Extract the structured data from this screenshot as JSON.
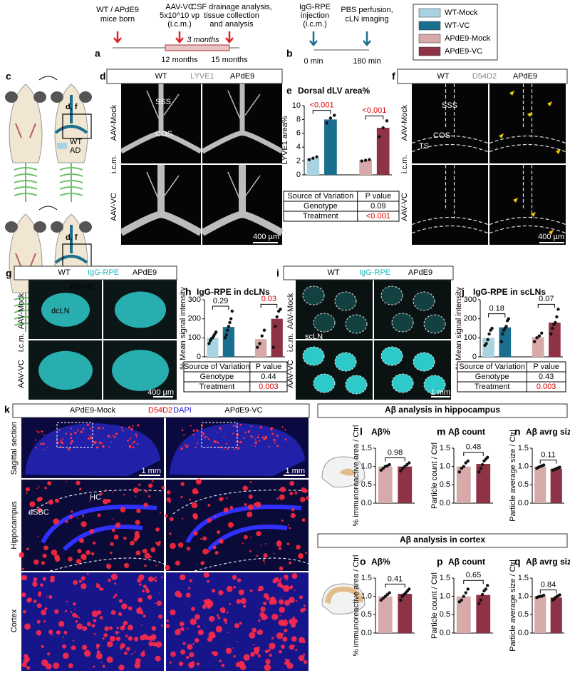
{
  "panel_a": {
    "label": "a",
    "events": [
      [
        "WT / APdE9",
        "mice born"
      ],
      [
        "AAV-VC",
        "5x10^10 vp",
        "(i.c.m.)"
      ],
      [
        "CSF drainage analysis,",
        "tissue collection",
        "and analysis"
      ]
    ],
    "times": [
      "12 months",
      "15 months"
    ],
    "duration": "3 months"
  },
  "panel_b": {
    "label": "b",
    "events": [
      [
        "IgG-RPE",
        "injection",
        "(i.c.m.)"
      ],
      [
        "PBS perfusion,",
        "cLN imaging"
      ]
    ],
    "times": [
      "0 min",
      "180 min"
    ]
  },
  "legend": [
    {
      "name": "WT-Mock",
      "color": "#a8d4e2"
    },
    {
      "name": "WT-VC",
      "color": "#1b6f8e"
    },
    {
      "name": "APdE9-Mock",
      "color": "#d8a9a9"
    },
    {
      "name": "APdE9-VC",
      "color": "#8e3345"
    }
  ],
  "panel_c": {
    "label": "c",
    "boxes": [
      "d, f",
      "d, f"
    ],
    "groups": [
      [
        "WT",
        "AD"
      ],
      [
        "VC",
        "AD-VC"
      ]
    ]
  },
  "panel_d": {
    "label": "d",
    "header": [
      "WT",
      "LYVE1",
      "APdE9"
    ],
    "rows": [
      "AAV-Mock",
      "i.c.m.",
      "AAV-VC"
    ],
    "annotations": [
      "SSS",
      "COS"
    ],
    "scale": "400 µm"
  },
  "panel_f": {
    "label": "f",
    "header": [
      "WT",
      "D54D2",
      "APdE9"
    ],
    "rows": [
      "AAV-Mock",
      "i.c.m.",
      "AAV-VC"
    ],
    "annotations": [
      "SSS",
      "COS",
      "TS"
    ],
    "scale": "400 µm"
  },
  "panel_g": {
    "label": "g",
    "header": [
      "WT",
      "IgG-RPE",
      "APdE9"
    ],
    "rows": [
      "AAV-Mock",
      "i.c.m.",
      "AAV-VC"
    ],
    "annotations": [
      "dcLN"
    ],
    "scale": "400 µm"
  },
  "panel_i": {
    "label": "i",
    "header": [
      "WT",
      "IgG-RPE",
      "APdE9"
    ],
    "rows": [
      "AAV-Mock",
      "i.c.m.",
      "AAV-VC"
    ],
    "annotations": [
      "scLN"
    ],
    "scale": "1 mm"
  },
  "panel_k": {
    "label": "k",
    "header": [
      "APdE9-Mock",
      "D54D2",
      "DAPI",
      "APdE9-VC"
    ],
    "rows": [
      "Sagittal section",
      "Hippocampus",
      "Cortex"
    ],
    "annotations": [
      "HC",
      "dSBC"
    ],
    "scales": [
      "1 mm",
      "1 mm"
    ]
  },
  "sections": [
    "Aβ analysis in hippocampus",
    "Aβ analysis in cortex"
  ],
  "chart_data": [
    {
      "type": "bar",
      "label": "e",
      "title": "Dorsal dLV area%",
      "y_label": "LYVE1 area%",
      "ylim": [
        0,
        10
      ],
      "yticks": [
        0,
        2,
        4,
        6,
        8,
        10
      ],
      "series": [
        {
          "name": "WT-Mock",
          "color": "#a8d4e2",
          "values": [
            2.4
          ],
          "points": [
            2.2,
            2.4,
            2.6
          ]
        },
        {
          "name": "WT-VC",
          "color": "#1b6f8e",
          "values": [
            8.0
          ],
          "points": [
            7.5,
            8.2,
            8.6
          ]
        },
        {
          "name": "APdE9-Mock",
          "color": "#d8a9a9",
          "values": [
            2.1
          ],
          "points": [
            2.0,
            2.1,
            2.2
          ]
        },
        {
          "name": "APdE9-VC",
          "color": "#8e3345",
          "values": [
            6.8
          ],
          "points": [
            5.5,
            6.8,
            7.8
          ]
        }
      ],
      "brackets": [
        {
          "label": "<0.001",
          "color": "#e00000"
        },
        {
          "label": "<0.001",
          "color": "#e00000"
        }
      ],
      "stats": {
        "header": [
          "Source of Variation",
          "P value"
        ],
        "rows": [
          [
            "Genotype",
            0.09
          ],
          [
            "Treatment",
            "<0.001"
          ]
        ],
        "row_colors": [
          "#000000",
          "#e00000"
        ]
      }
    },
    {
      "type": "bar",
      "label": "h",
      "title": "IgG-RPE in dcLNs",
      "y_label": "% Mean signal intensity",
      "ylim": [
        0,
        300
      ],
      "yticks": [
        0,
        100,
        200,
        300
      ],
      "series": [
        {
          "name": "WT-Mock",
          "color": "#a8d4e2",
          "values": [
            100
          ],
          "points": [
            70,
            85,
            95,
            100,
            110,
            120,
            130
          ]
        },
        {
          "name": "WT-VC",
          "color": "#1b6f8e",
          "values": [
            157
          ],
          "points": [
            100,
            115,
            140,
            160,
            180,
            200,
            240
          ]
        },
        {
          "name": "APdE9-Mock",
          "color": "#d8a9a9",
          "values": [
            93
          ],
          "points": [
            50,
            70,
            110,
            140
          ]
        },
        {
          "name": "APdE9-VC",
          "color": "#8e3345",
          "values": [
            200
          ],
          "points": [
            50,
            160,
            210,
            240,
            250
          ]
        }
      ],
      "brackets": [
        {
          "label": 0.29,
          "color": "#000000"
        },
        {
          "label": 0.03,
          "color": "#e00000"
        }
      ],
      "stats": {
        "header": [
          "Source of Variation",
          "P value"
        ],
        "rows": [
          [
            "Genotype",
            0.44
          ],
          [
            "Treatment",
            0.003
          ]
        ],
        "row_colors": [
          "#000000",
          "#e00000"
        ]
      }
    },
    {
      "type": "bar",
      "label": "j",
      "title": "IgG-RPE in scLNs",
      "y_label": "% Mean signal intensity",
      "ylim": [
        0,
        300
      ],
      "yticks": [
        0,
        100,
        200,
        300
      ],
      "series": [
        {
          "name": "WT-Mock",
          "color": "#a8d4e2",
          "values": [
            100
          ],
          "points": [
            60,
            70,
            90,
            120,
            140,
            150
          ]
        },
        {
          "name": "WT-VC",
          "color": "#1b6f8e",
          "values": [
            155
          ],
          "points": [
            80,
            120,
            140,
            150,
            160,
            190,
            200
          ]
        },
        {
          "name": "APdE9-Mock",
          "color": "#d8a9a9",
          "values": [
            103
          ],
          "points": [
            80,
            100,
            110,
            125
          ]
        },
        {
          "name": "APdE9-VC",
          "color": "#8e3345",
          "values": [
            180
          ],
          "points": [
            120,
            150,
            170,
            180,
            210,
            250
          ]
        }
      ],
      "brackets": [
        {
          "label": 0.18,
          "color": "#000000"
        },
        {
          "label": 0.07,
          "color": "#000000"
        }
      ],
      "stats": {
        "header": [
          "Source of Variation",
          "P value"
        ],
        "rows": [
          [
            "Genotype",
            0.43
          ],
          [
            "Treatment",
            0.003
          ]
        ],
        "row_colors": [
          "#000000",
          "#e00000"
        ]
      }
    },
    {
      "type": "bar",
      "label": "l",
      "title": "Aβ%",
      "y_label": "% immunoreactive area / Ctrl",
      "ylim": [
        0,
        1.5
      ],
      "yticks": [
        {
          "value": 0,
          "label": "0.0"
        },
        0.5,
        {
          "value": 1,
          "label": "1.0"
        },
        1.5
      ],
      "series": [
        {
          "name": "APdE9-Mock",
          "color": "#d8a9a9",
          "values": [
            1.0
          ],
          "points": [
            0.9,
            0.95,
            1.0,
            1.02,
            1.05
          ]
        },
        {
          "name": "APdE9-VC",
          "color": "#8e3345",
          "values": [
            1.0
          ],
          "points": [
            0.88,
            0.95,
            1.0,
            1.05,
            1.1
          ]
        }
      ],
      "brackets": [
        {
          "label": 0.98,
          "color": "#000000"
        }
      ]
    },
    {
      "type": "bar",
      "label": "m",
      "title": "Aβ count",
      "y_label": "Particle count / Ctrl",
      "ylim": [
        0,
        1.5
      ],
      "yticks": [
        {
          "value": 0,
          "label": "0.0"
        },
        0.5,
        {
          "value": 1,
          "label": "1.0"
        },
        1.5
      ],
      "series": [
        {
          "name": "APdE9-Mock",
          "color": "#d8a9a9",
          "values": [
            1.0
          ],
          "points": [
            0.85,
            0.95,
            1.0,
            1.1,
            1.15
          ]
        },
        {
          "name": "APdE9-VC",
          "color": "#8e3345",
          "values": [
            1.07
          ],
          "points": [
            0.85,
            0.95,
            1.05,
            1.15,
            1.2,
            1.25
          ]
        }
      ],
      "brackets": [
        {
          "label": 0.48,
          "color": "#000000"
        }
      ]
    },
    {
      "type": "bar",
      "label": "n",
      "title": "Aβ avrg size",
      "y_label": "Particle average size / Ctrl",
      "ylim": [
        0,
        1.5
      ],
      "yticks": [
        {
          "value": 0,
          "label": "0.0"
        },
        0.5,
        {
          "value": 1,
          "label": "1.0"
        },
        1.5
      ],
      "series": [
        {
          "name": "APdE9-Mock",
          "color": "#d8a9a9",
          "values": [
            1.0
          ],
          "points": [
            0.95,
            0.98,
            1.0,
            1.02,
            1.04
          ]
        },
        {
          "name": "APdE9-VC",
          "color": "#8e3345",
          "values": [
            0.94
          ],
          "points": [
            0.9,
            0.92,
            0.94,
            0.96,
            0.98
          ]
        }
      ],
      "brackets": [
        {
          "label": 0.11,
          "color": "#000000"
        }
      ]
    },
    {
      "type": "bar",
      "label": "o",
      "title": "Aβ%",
      "y_label": "% immunoreactive area / Ctrl",
      "ylim": [
        0,
        1.5
      ],
      "yticks": [
        {
          "value": 0,
          "label": "0.0"
        },
        0.5,
        {
          "value": 1,
          "label": "1.0"
        },
        1.5
      ],
      "series": [
        {
          "name": "APdE9-Mock",
          "color": "#d8a9a9",
          "values": [
            1.0
          ],
          "points": [
            0.9,
            0.95,
            1.0,
            1.05,
            1.1
          ]
        },
        {
          "name": "APdE9-VC",
          "color": "#8e3345",
          "values": [
            1.07
          ],
          "points": [
            0.9,
            1.0,
            1.05,
            1.1,
            1.15,
            1.2
          ]
        }
      ],
      "brackets": [
        {
          "label": 0.41,
          "color": "#000000"
        }
      ]
    },
    {
      "type": "bar",
      "label": "p",
      "title": "Aβ count",
      "y_label": "Particle count / Ctrl",
      "ylim": [
        0,
        1.5
      ],
      "yticks": [
        {
          "value": 0,
          "label": "0.0"
        },
        0.5,
        {
          "value": 1,
          "label": "1.0"
        },
        1.5
      ],
      "series": [
        {
          "name": "APdE9-Mock",
          "color": "#d8a9a9",
          "values": [
            1.0
          ],
          "points": [
            0.85,
            0.9,
            1.0,
            1.1,
            1.2
          ]
        },
        {
          "name": "APdE9-VC",
          "color": "#8e3345",
          "values": [
            1.04
          ],
          "points": [
            0.8,
            0.9,
            1.05,
            1.15,
            1.2,
            1.3
          ]
        }
      ],
      "brackets": [
        {
          "label": 0.65,
          "color": "#000000"
        }
      ]
    },
    {
      "type": "bar",
      "label": "q",
      "title": "Aβ avrg size",
      "y_label": "Particle average size / Ctrl",
      "ylim": [
        0,
        1.5
      ],
      "yticks": [
        {
          "value": 0,
          "label": "0.0"
        },
        0.5,
        {
          "value": 1,
          "label": "1.0"
        },
        1.5
      ],
      "series": [
        {
          "name": "APdE9-Mock",
          "color": "#d8a9a9",
          "values": [
            1.0
          ],
          "points": [
            0.97,
            0.99,
            1.0,
            1.01,
            1.03
          ]
        },
        {
          "name": "APdE9-VC",
          "color": "#8e3345",
          "values": [
            0.97
          ],
          "points": [
            0.9,
            0.93,
            0.97,
            1.0,
            1.02,
            1.04
          ]
        }
      ],
      "brackets": [
        {
          "label": 0.84,
          "color": "#000000"
        }
      ]
    }
  ]
}
